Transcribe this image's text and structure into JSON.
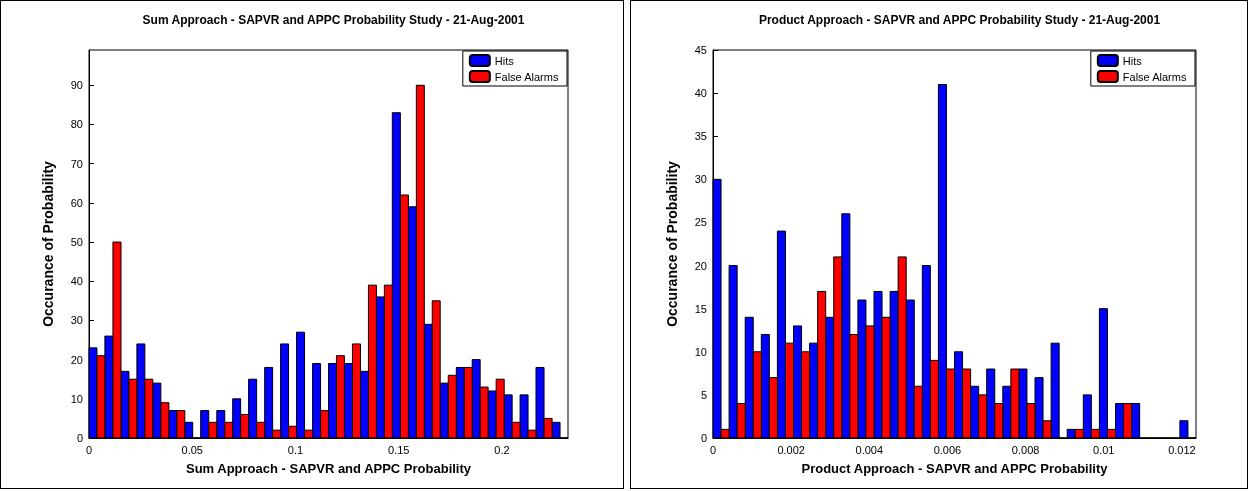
{
  "chart_data": [
    {
      "type": "histogram",
      "title": "Sum Approach - SAPVR and APPC Probability Study - 21-Aug-2001",
      "xlabel": "Sum Approach - SAPVR and APPC Probability",
      "ylabel": "Occurance of Probability",
      "bins": [
        0,
        0.0077,
        0.0155,
        0.0232,
        0.0309,
        0.0387,
        0.0464,
        0.0541,
        0.0619,
        0.0696,
        0.0773,
        0.0851,
        0.0928,
        0.1005,
        0.1083,
        0.116,
        0.1237,
        0.1315,
        0.1392,
        0.1469,
        0.1547,
        0.1624,
        0.1701,
        0.1779,
        0.1856,
        0.1933,
        0.2011,
        0.2088,
        0.2165,
        0.2243,
        0.232
      ],
      "series": [
        {
          "name": "Hits",
          "color": "#0000ff",
          "values": [
            23,
            26,
            17,
            24,
            14,
            7,
            4,
            7,
            7,
            10,
            15,
            18,
            24,
            27,
            19,
            19,
            19,
            17,
            36,
            83,
            59,
            29,
            14,
            18,
            20,
            12,
            11,
            11,
            18,
            4
          ]
        },
        {
          "name": "False Alarms",
          "color": "#ff0000",
          "values": [
            21,
            50,
            15,
            15,
            9,
            7,
            0,
            4,
            4,
            6,
            4,
            2,
            3,
            2,
            7,
            21,
            24,
            39,
            39,
            62,
            90,
            35,
            16,
            18,
            13,
            15,
            4,
            2,
            5,
            0
          ]
        }
      ],
      "xlim": [
        0,
        0.232
      ],
      "xticks": [
        0,
        0.05,
        0.1,
        0.15,
        0.2
      ],
      "ylim": [
        0,
        99
      ],
      "yticks": [
        0,
        10,
        20,
        30,
        40,
        50,
        60,
        70,
        80,
        90
      ],
      "grid": false,
      "legend": "top right"
    },
    {
      "type": "histogram",
      "title": "Product Approach - SAPVR and APPC Probability Study - 21-Aug-2001",
      "xlabel": "Product Approach - SAPVR and APPC Probability",
      "ylabel": "Occurance of Probability",
      "bins": [
        0,
        0.000412,
        0.000824,
        0.001236,
        0.001648,
        0.00206,
        0.002472,
        0.002884,
        0.003296,
        0.003708,
        0.00412,
        0.004532,
        0.004944,
        0.005356,
        0.005768,
        0.00618,
        0.006592,
        0.007004,
        0.007416,
        0.007828,
        0.00824,
        0.008652,
        0.009064,
        0.009476,
        0.009888,
        0.0103,
        0.010712,
        0.011124,
        0.011536,
        0.011948,
        0.01236
      ],
      "series": [
        {
          "name": "Hits",
          "color": "#0000ff",
          "values": [
            30,
            20,
            14,
            12,
            24,
            13,
            11,
            14,
            26,
            16,
            17,
            17,
            16,
            20,
            41,
            10,
            6,
            8,
            6,
            8,
            7,
            11,
            1,
            5,
            15,
            4,
            4,
            0,
            0,
            2
          ]
        },
        {
          "name": "False Alarms",
          "color": "#ff0000",
          "values": [
            1,
            4,
            10,
            7,
            11,
            10,
            17,
            21,
            12,
            13,
            14,
            21,
            6,
            9,
            8,
            8,
            5,
            4,
            8,
            4,
            2,
            0,
            1,
            1,
            1,
            4,
            0,
            0,
            0,
            0
          ]
        }
      ],
      "xlim": [
        0,
        0.01236
      ],
      "xticks": [
        0,
        0.002,
        0.004,
        0.006,
        0.008,
        0.01,
        0.012
      ],
      "ylim": [
        0,
        45
      ],
      "yticks": [
        0,
        5,
        10,
        15,
        20,
        25,
        30,
        35,
        40,
        45
      ],
      "grid": false,
      "legend": "top right"
    }
  ]
}
